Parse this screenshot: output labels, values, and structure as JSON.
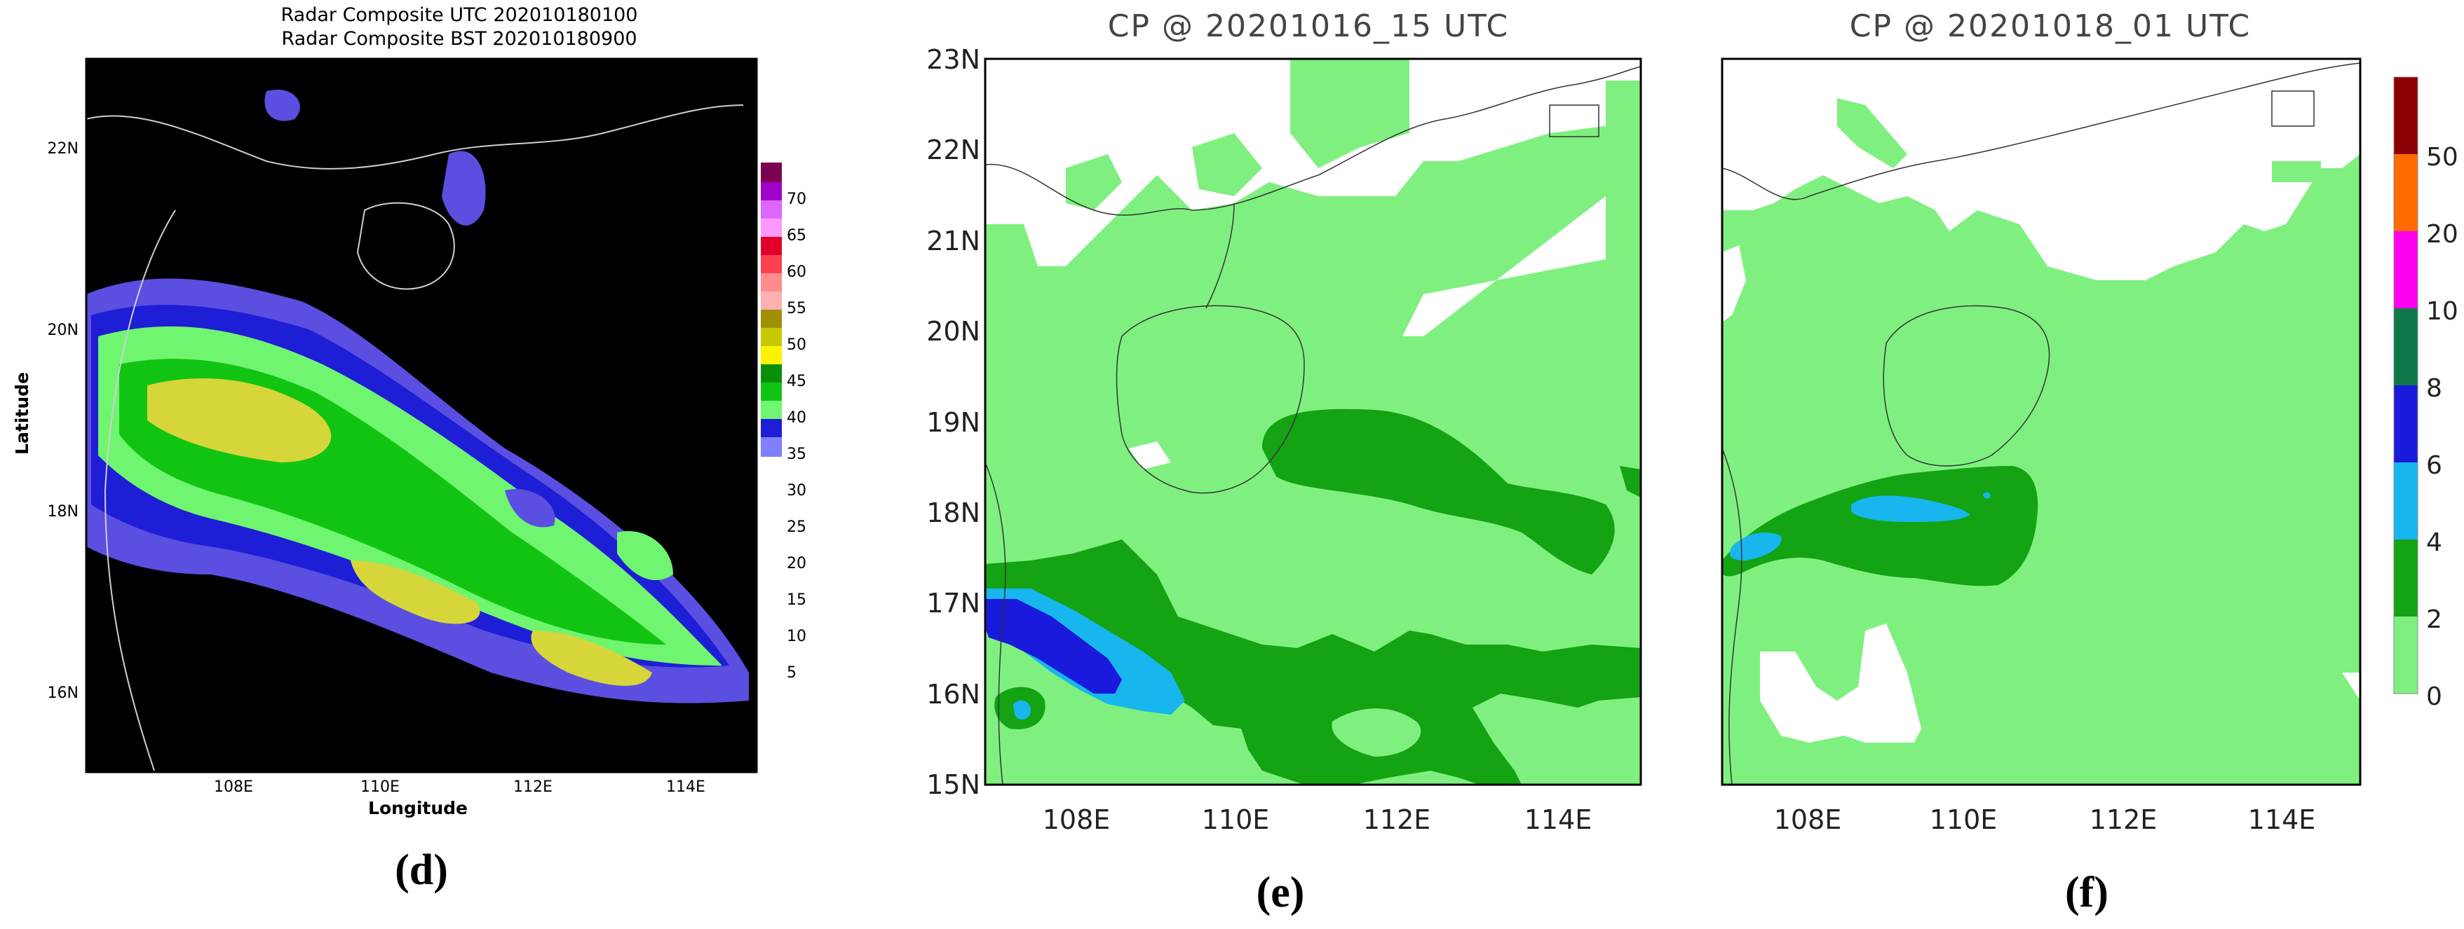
{
  "colors": {
    "radar_bg": "#000000",
    "cp_0_2": "#7ff07f",
    "cp_2_4": "#13a313",
    "cp_4_6": "#17b6ee",
    "cp_6_8": "#1a1adc",
    "cp_8_10": "#0e7a4a",
    "cp_10_20": "#ff00ee",
    "cp_20_50": "#ff6a00",
    "cp_over_50": "#8b0000"
  },
  "panels": {
    "d": {
      "title_line1": "Radar Composite UTC 202010180100",
      "title_line2": "Radar Composite BST 202010180900",
      "ylabel": "Latitude",
      "xlabel": "Longitude",
      "yticks": [
        "22N",
        "20N",
        "18N",
        "16N"
      ],
      "xticks": [
        "108E",
        "110E",
        "112E",
        "114E"
      ],
      "colorbar_labels": [
        "70",
        "65",
        "60",
        "55",
        "50",
        "45",
        "40",
        "35",
        "30",
        "25",
        "20",
        "15",
        "10",
        "5"
      ],
      "caption": "(d)"
    },
    "e": {
      "title": "CP @ 20201016_15 UTC",
      "yticks": [
        "23N",
        "22N",
        "21N",
        "20N",
        "19N",
        "18N",
        "17N",
        "16N",
        "15N"
      ],
      "xticks": [
        "108E",
        "110E",
        "112E",
        "114E"
      ],
      "caption": "(e)"
    },
    "f": {
      "title": "CP @ 20201018_01 UTC",
      "xticks": [
        "108E",
        "110E",
        "112E",
        "114E"
      ],
      "caption": "(f)"
    },
    "colorbar_ef_labels": [
      "50",
      "20",
      "10",
      "8",
      "6",
      "4",
      "2",
      "0"
    ]
  },
  "chart_data": [
    {
      "type": "heatmap",
      "panel": "d",
      "title": "Radar Composite UTC 202010180100 / Radar Composite BST 202010180900",
      "xlabel": "Longitude",
      "ylabel": "Latitude",
      "xlim": [
        106,
        115
      ],
      "ylim": [
        15,
        23
      ],
      "colorbar_levels": [
        5,
        10,
        15,
        20,
        25,
        30,
        35,
        40,
        45,
        50,
        55,
        60,
        65,
        70
      ],
      "colorbar_colors": [
        "#7f7fff",
        "#1e1ed6",
        "#6ff56f",
        "#12c412",
        "#0b8f0b",
        "#fff200",
        "#c8c800",
        "#a09000",
        "#ffb0b0",
        "#ff7070",
        "#ff4050",
        "#ff00cc",
        "#dd66ff",
        "#a000c8",
        "#7a0050"
      ]
    },
    {
      "type": "heatmap",
      "panel": "e",
      "title": "CP @ 20201016_15 UTC",
      "xlim": [
        107,
        115
      ],
      "ylim": [
        15,
        23
      ],
      "colorbar_levels": [
        0,
        2,
        4,
        6,
        8,
        10,
        20,
        50
      ]
    },
    {
      "type": "heatmap",
      "panel": "f",
      "title": "CP @ 20201018_01 UTC",
      "xlim": [
        107,
        115
      ],
      "ylim": [
        15,
        23
      ],
      "colorbar_levels": [
        0,
        2,
        4,
        6,
        8,
        10,
        20,
        50
      ]
    }
  ]
}
